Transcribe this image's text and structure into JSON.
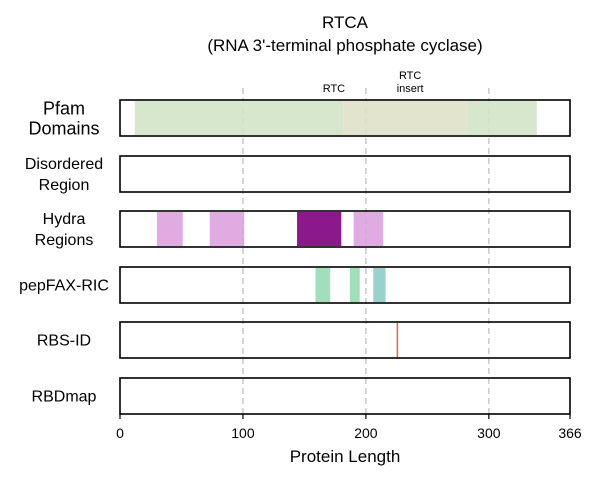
{
  "chart_data": {
    "type": "bar",
    "title": "RTCA",
    "subtitle": "(RNA 3'-terminal phosphate cyclase)",
    "xlabel": "Protein Length",
    "xlim": [
      0,
      366
    ],
    "xticks": [
      0,
      100,
      200,
      300,
      366
    ],
    "grid": "vertical dashed at 100, 200, 300",
    "tracks": [
      {
        "label_lines": [
          "Pfam",
          "Domains"
        ],
        "segments": [
          {
            "start": 12,
            "end": 182,
            "color": "#d1e4c8"
          },
          {
            "start": 182,
            "end": 283,
            "color": "#dfe1c9"
          },
          {
            "start": 283,
            "end": 339,
            "color": "#d1e4c8"
          }
        ],
        "annotations": [
          {
            "lines": [
              "RTC"
            ],
            "x": 174
          },
          {
            "lines": [
              "RTC",
              "insert"
            ],
            "x": 236
          }
        ]
      },
      {
        "label_lines": [
          "Disordered",
          "Region"
        ],
        "segments": []
      },
      {
        "label_lines": [
          "Hydra",
          "Regions"
        ],
        "segments": [
          {
            "start": 30,
            "end": 51,
            "color": "#dda2dd"
          },
          {
            "start": 73,
            "end": 101,
            "color": "#dda2dd"
          },
          {
            "start": 144,
            "end": 180,
            "color": "#800080"
          },
          {
            "start": 190,
            "end": 214,
            "color": "#dda2dd"
          }
        ]
      },
      {
        "label_lines": [
          "pepFAX-RIC"
        ],
        "segments": [
          {
            "start": 159,
            "end": 171,
            "color": "#97dbb4"
          },
          {
            "start": 187,
            "end": 195,
            "color": "#97dbb4"
          },
          {
            "start": 206,
            "end": 216,
            "color": "#8ecdc6"
          }
        ]
      },
      {
        "label_lines": [
          "RBS-ID"
        ],
        "segments": [
          {
            "start": 225,
            "end": 226,
            "color": "#e2541e"
          }
        ]
      },
      {
        "label_lines": [
          "RBDmap"
        ],
        "segments": []
      }
    ]
  }
}
